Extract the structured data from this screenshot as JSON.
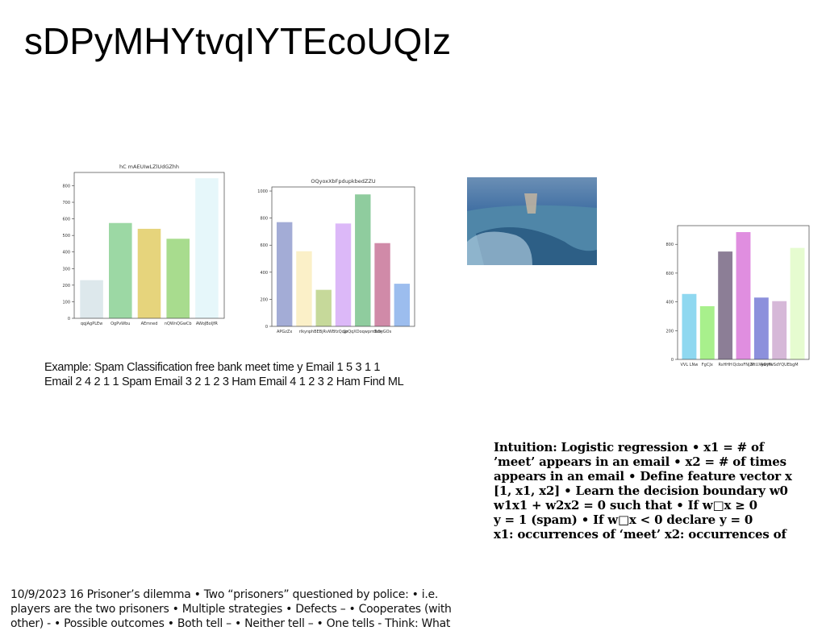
{
  "title": "sDPyMHYtvqIYTEcoUQIz",
  "chart_data": [
    {
      "type": "bar",
      "title": "hC mAEUIwLZlUdGZhh",
      "categories": [
        "qqjAgPLEw",
        "OgPvWbu",
        "AEmned",
        "nQWnQGwCb",
        "AWoJBoIJfR"
      ],
      "values": [
        230,
        575,
        540,
        480,
        845
      ],
      "colors": [
        "#dde8ec",
        "#9cd8a4",
        "#e6d47c",
        "#a8dc8e",
        "#e6f7fa"
      ],
      "ylim": [
        0,
        880
      ],
      "yticks": [
        0,
        100,
        200,
        300,
        400,
        500,
        600,
        700,
        800
      ]
    },
    {
      "type": "bar",
      "title": "OQyoxXbFpdupkbedZZU",
      "categories": [
        "APGzZx",
        "rIkyn",
        "phBEBjRvWBfz",
        "Qcjjr",
        "LoQqXDoqwpmTom",
        "dsSyGOs",
        null
      ],
      "values": [
        770,
        555,
        270,
        760,
        975,
        615,
        315
      ],
      "colors": [
        "#a3acd6",
        "#fbf0c8",
        "#c6d99a",
        "#dcb8f8",
        "#8fcc9e",
        "#d08aa8",
        "#9cbdee"
      ],
      "ylim": [
        0,
        1030
      ],
      "yticks": [
        0,
        200,
        400,
        600,
        800,
        1000
      ]
    },
    {
      "type": "bar",
      "categories": [
        "VVL LNw",
        "FgCJx",
        "RsHHH",
        "QcboFNjZf",
        "MtUXyDtW",
        "AwyfwSdYQUEbgM",
        null
      ],
      "values": [
        455,
        370,
        750,
        885,
        430,
        405,
        775
      ],
      "colors": [
        "#8fd8f0",
        "#a8f08c",
        "#8c7e96",
        "#e08ee0",
        "#8c90dc",
        "#d6b8d8",
        "#e6fcd0"
      ],
      "ylim": [
        0,
        930
      ],
      "yticks": [
        0,
        200,
        400,
        600,
        800
      ]
    }
  ],
  "example": [
    "Example: Spam Classification free bank meet time y Email 1 5 3 1 1",
    "Email 2 4 2 1 1 Spam Email 3 2 1 2 3 Ham Email 4 1 2 3 2 Ham Find ML"
  ],
  "intuition": [
    "Intuition: Logistic regression • x1 = # of",
    "’meet’ appears in an email • x2 = # of times",
    "appears in an email • Define feature vector x",
    "[1, x1, x2] • Learn the decision boundary w0",
    "w1x1 + w2x2 = 0 such that • If w□x ≥ 0",
    "y = 1 (spam) • If w□x < 0 declare y = 0",
    "x1: occurrences of ‘meet’ x2: occurrences of"
  ],
  "footer": [
    "10/9/2023 16 Prisoner’s dilemma • Two “prisoners” questioned by police: • i.e.",
    "players are the two prisoners • Multiple strategies • Defects – • Cooperates (with",
    "other) - • Possible outcomes • Both tell – • Neither tell – • One tells - Think: What"
  ]
}
